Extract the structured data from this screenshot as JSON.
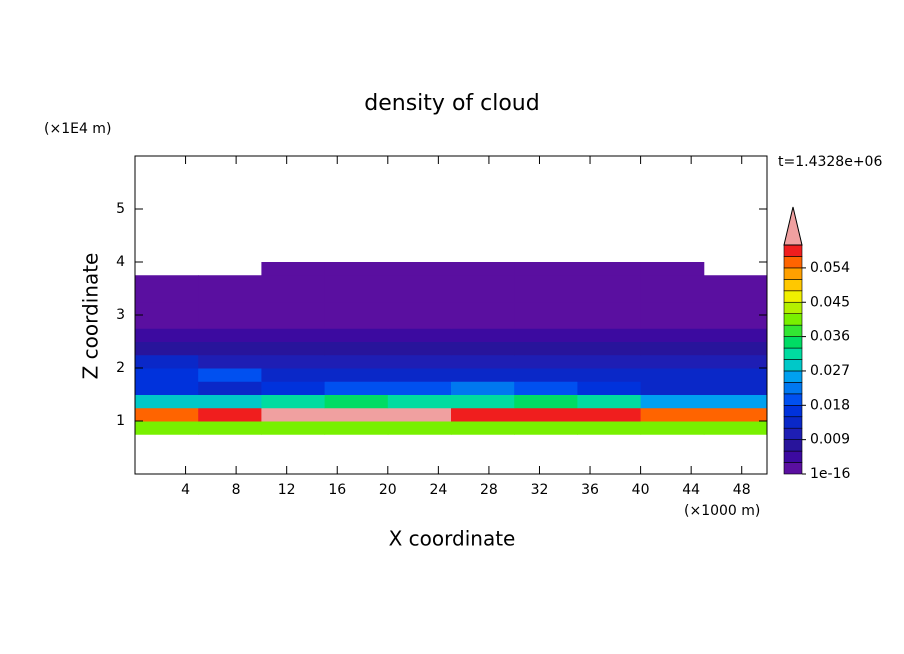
{
  "chart_data": {
    "type": "contour",
    "title": "density of cloud",
    "x_label": "X coordinate",
    "y_label": "Z coordinate",
    "x_unit": "(×1000 m)",
    "y_unit": "(×1E4 m)",
    "annotation": "t=1.4328e+06",
    "xlim": [
      0,
      50
    ],
    "ylim": [
      0,
      6
    ],
    "xticks": [
      4,
      8,
      12,
      16,
      20,
      24,
      28,
      32,
      36,
      40,
      44,
      48
    ],
    "yticks": [
      1,
      2,
      3,
      4,
      5
    ],
    "field": {
      "x_edges": [
        0,
        5,
        10,
        15,
        20,
        25,
        30,
        35,
        40,
        45,
        50
      ],
      "z_edges": [
        0.75,
        1.0,
        1.25,
        1.5,
        1.75,
        2.0,
        2.25,
        2.5,
        2.75,
        3.0,
        3.25,
        3.5,
        3.75,
        4.0
      ],
      "values": [
        [
          0.04,
          0.04,
          0.04,
          0.04,
          0.04,
          0.04,
          0.04,
          0.04,
          0.04,
          0.04
        ],
        [
          0.055,
          0.058,
          0.065,
          0.065,
          0.065,
          0.058,
          0.058,
          0.058,
          0.055,
          0.055
        ],
        [
          0.027,
          0.027,
          0.03,
          0.033,
          0.03,
          0.03,
          0.033,
          0.03,
          0.024,
          0.024
        ],
        [
          0.015,
          0.012,
          0.015,
          0.018,
          0.018,
          0.021,
          0.018,
          0.015,
          0.012,
          0.012
        ],
        [
          0.015,
          0.018,
          0.012,
          0.012,
          0.012,
          0.012,
          0.012,
          0.012,
          0.012,
          0.012
        ],
        [
          0.012,
          0.009,
          0.009,
          0.009,
          0.009,
          0.009,
          0.009,
          0.009,
          0.009,
          0.009
        ],
        [
          0.006,
          0.006,
          0.006,
          0.006,
          0.006,
          0.006,
          0.006,
          0.006,
          0.006,
          0.006
        ],
        [
          0.004,
          0.004,
          0.004,
          0.004,
          0.004,
          0.004,
          0.004,
          0.004,
          0.004,
          0.004
        ],
        [
          0.002,
          0.002,
          0.002,
          0.002,
          0.002,
          0.002,
          0.002,
          0.002,
          0.002,
          0.002
        ],
        [
          0.001,
          0.001,
          0.001,
          0.001,
          0.001,
          0.001,
          0.001,
          0.001,
          0.001,
          0.001
        ],
        [
          0.001,
          0.001,
          0.001,
          0.001,
          0.001,
          0.001,
          0.001,
          0.001,
          0.001,
          0.001
        ],
        [
          0.0005,
          0.0005,
          0.0005,
          0.0005,
          0.0005,
          0.0005,
          0.0005,
          0.0005,
          0.0005,
          0.0005
        ],
        [
          null,
          null,
          0.0005,
          0.0005,
          0.0005,
          0.0005,
          0.0005,
          0.0005,
          0.0005,
          null
        ]
      ]
    },
    "colorbar": {
      "levels": [
        1e-16,
        0.003,
        0.006,
        0.009,
        0.012,
        0.015,
        0.018,
        0.021,
        0.024,
        0.027,
        0.03,
        0.033,
        0.036,
        0.039,
        0.042,
        0.045,
        0.048,
        0.051,
        0.054,
        0.057,
        0.06
      ],
      "colors": [
        "#5a0fa0",
        "#3c0aa0",
        "#28149b",
        "#1e1eb4",
        "#0a28c8",
        "#0032dc",
        "#0050f0",
        "#0078f0",
        "#00a0f0",
        "#00c8c8",
        "#00dca0",
        "#00dc64",
        "#32e632",
        "#78f000",
        "#b4f000",
        "#f0f000",
        "#ffc800",
        "#ffa000",
        "#ff6400",
        "#f01e1e"
      ],
      "over_color": "#f0a0a0",
      "ticks": [
        1e-16,
        0.009,
        0.018,
        0.027,
        0.036,
        0.045,
        0.054
      ]
    }
  }
}
